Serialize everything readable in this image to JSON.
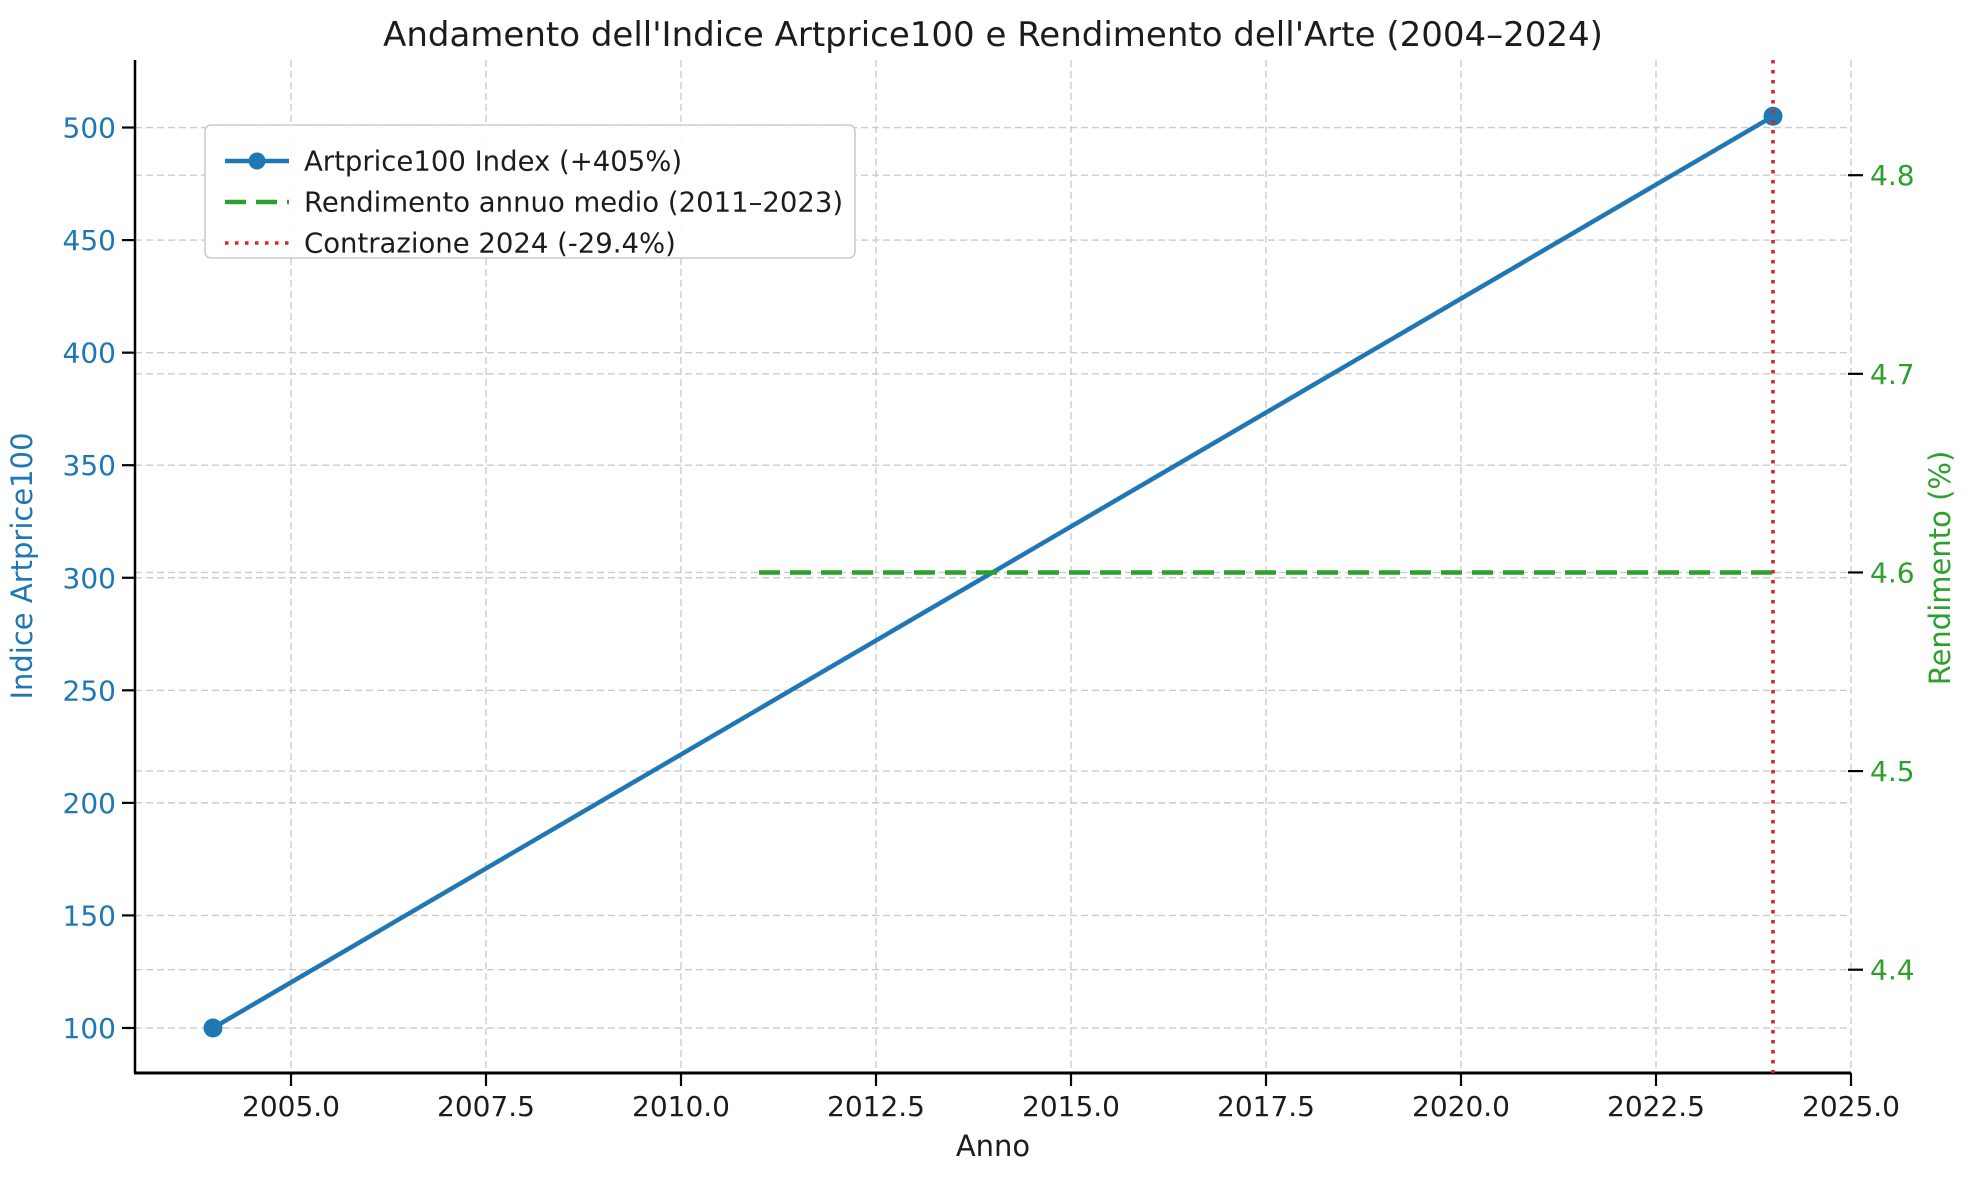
{
  "colors": {
    "blue": "#1f77b4",
    "green": "#2ca02c",
    "red": "#d62728",
    "grid": "#cccccc",
    "text": "#1c1c1c",
    "spine": "#000000",
    "legend_border": "#cccccc",
    "background": "#ffffff"
  },
  "chart_data": {
    "type": "line",
    "title": "Andamento dell'Indice Artprice100 e Rendimento dell'Arte (2004–2024)",
    "xlabel": "Anno",
    "ylabel_left": "Indice Artprice100",
    "ylabel_right": "Rendimento (%)",
    "xlim": [
      2003,
      2025
    ],
    "ylim_left": [
      80,
      530
    ],
    "ylim_right": [
      4.348,
      4.858
    ],
    "x_ticks": [
      2005,
      2007.5,
      2010,
      2012.5,
      2015,
      2017.5,
      2020,
      2022.5,
      2025
    ],
    "x_tick_labels": [
      "2005.0",
      "2007.5",
      "2010.0",
      "2012.5",
      "2015.0",
      "2017.5",
      "2020.0",
      "2022.5",
      "2025.0"
    ],
    "y_ticks_left": [
      100,
      150,
      200,
      250,
      300,
      350,
      400,
      450,
      500
    ],
    "y_tick_labels_left": [
      "100",
      "150",
      "200",
      "250",
      "300",
      "350",
      "400",
      "450",
      "500"
    ],
    "y_ticks_right": [
      4.4,
      4.5,
      4.6,
      4.7,
      4.8
    ],
    "y_tick_labels_right": [
      "4.4",
      "4.5",
      "4.6",
      "4.7",
      "4.8"
    ],
    "grid": true,
    "legend_position": "upper left",
    "series": [
      {
        "name": "Artprice100 Index (+405%)",
        "axis": "left",
        "style": "solid",
        "marker": "circle",
        "color": "#1f77b4",
        "x": [
          2004,
          2024
        ],
        "y": [
          100,
          505
        ]
      },
      {
        "name": "Rendimento annuo medio (2011–2023)",
        "axis": "right",
        "style": "dashed",
        "marker": "none",
        "color": "#2ca02c",
        "x": [
          2011,
          2024
        ],
        "y": [
          4.6,
          4.6
        ]
      },
      {
        "name": "Contrazione 2024 (-29.4%)",
        "axis": "vline",
        "style": "dotted",
        "marker": "none",
        "color": "#d62728",
        "x": [
          2024,
          2024
        ],
        "y": null
      }
    ]
  }
}
